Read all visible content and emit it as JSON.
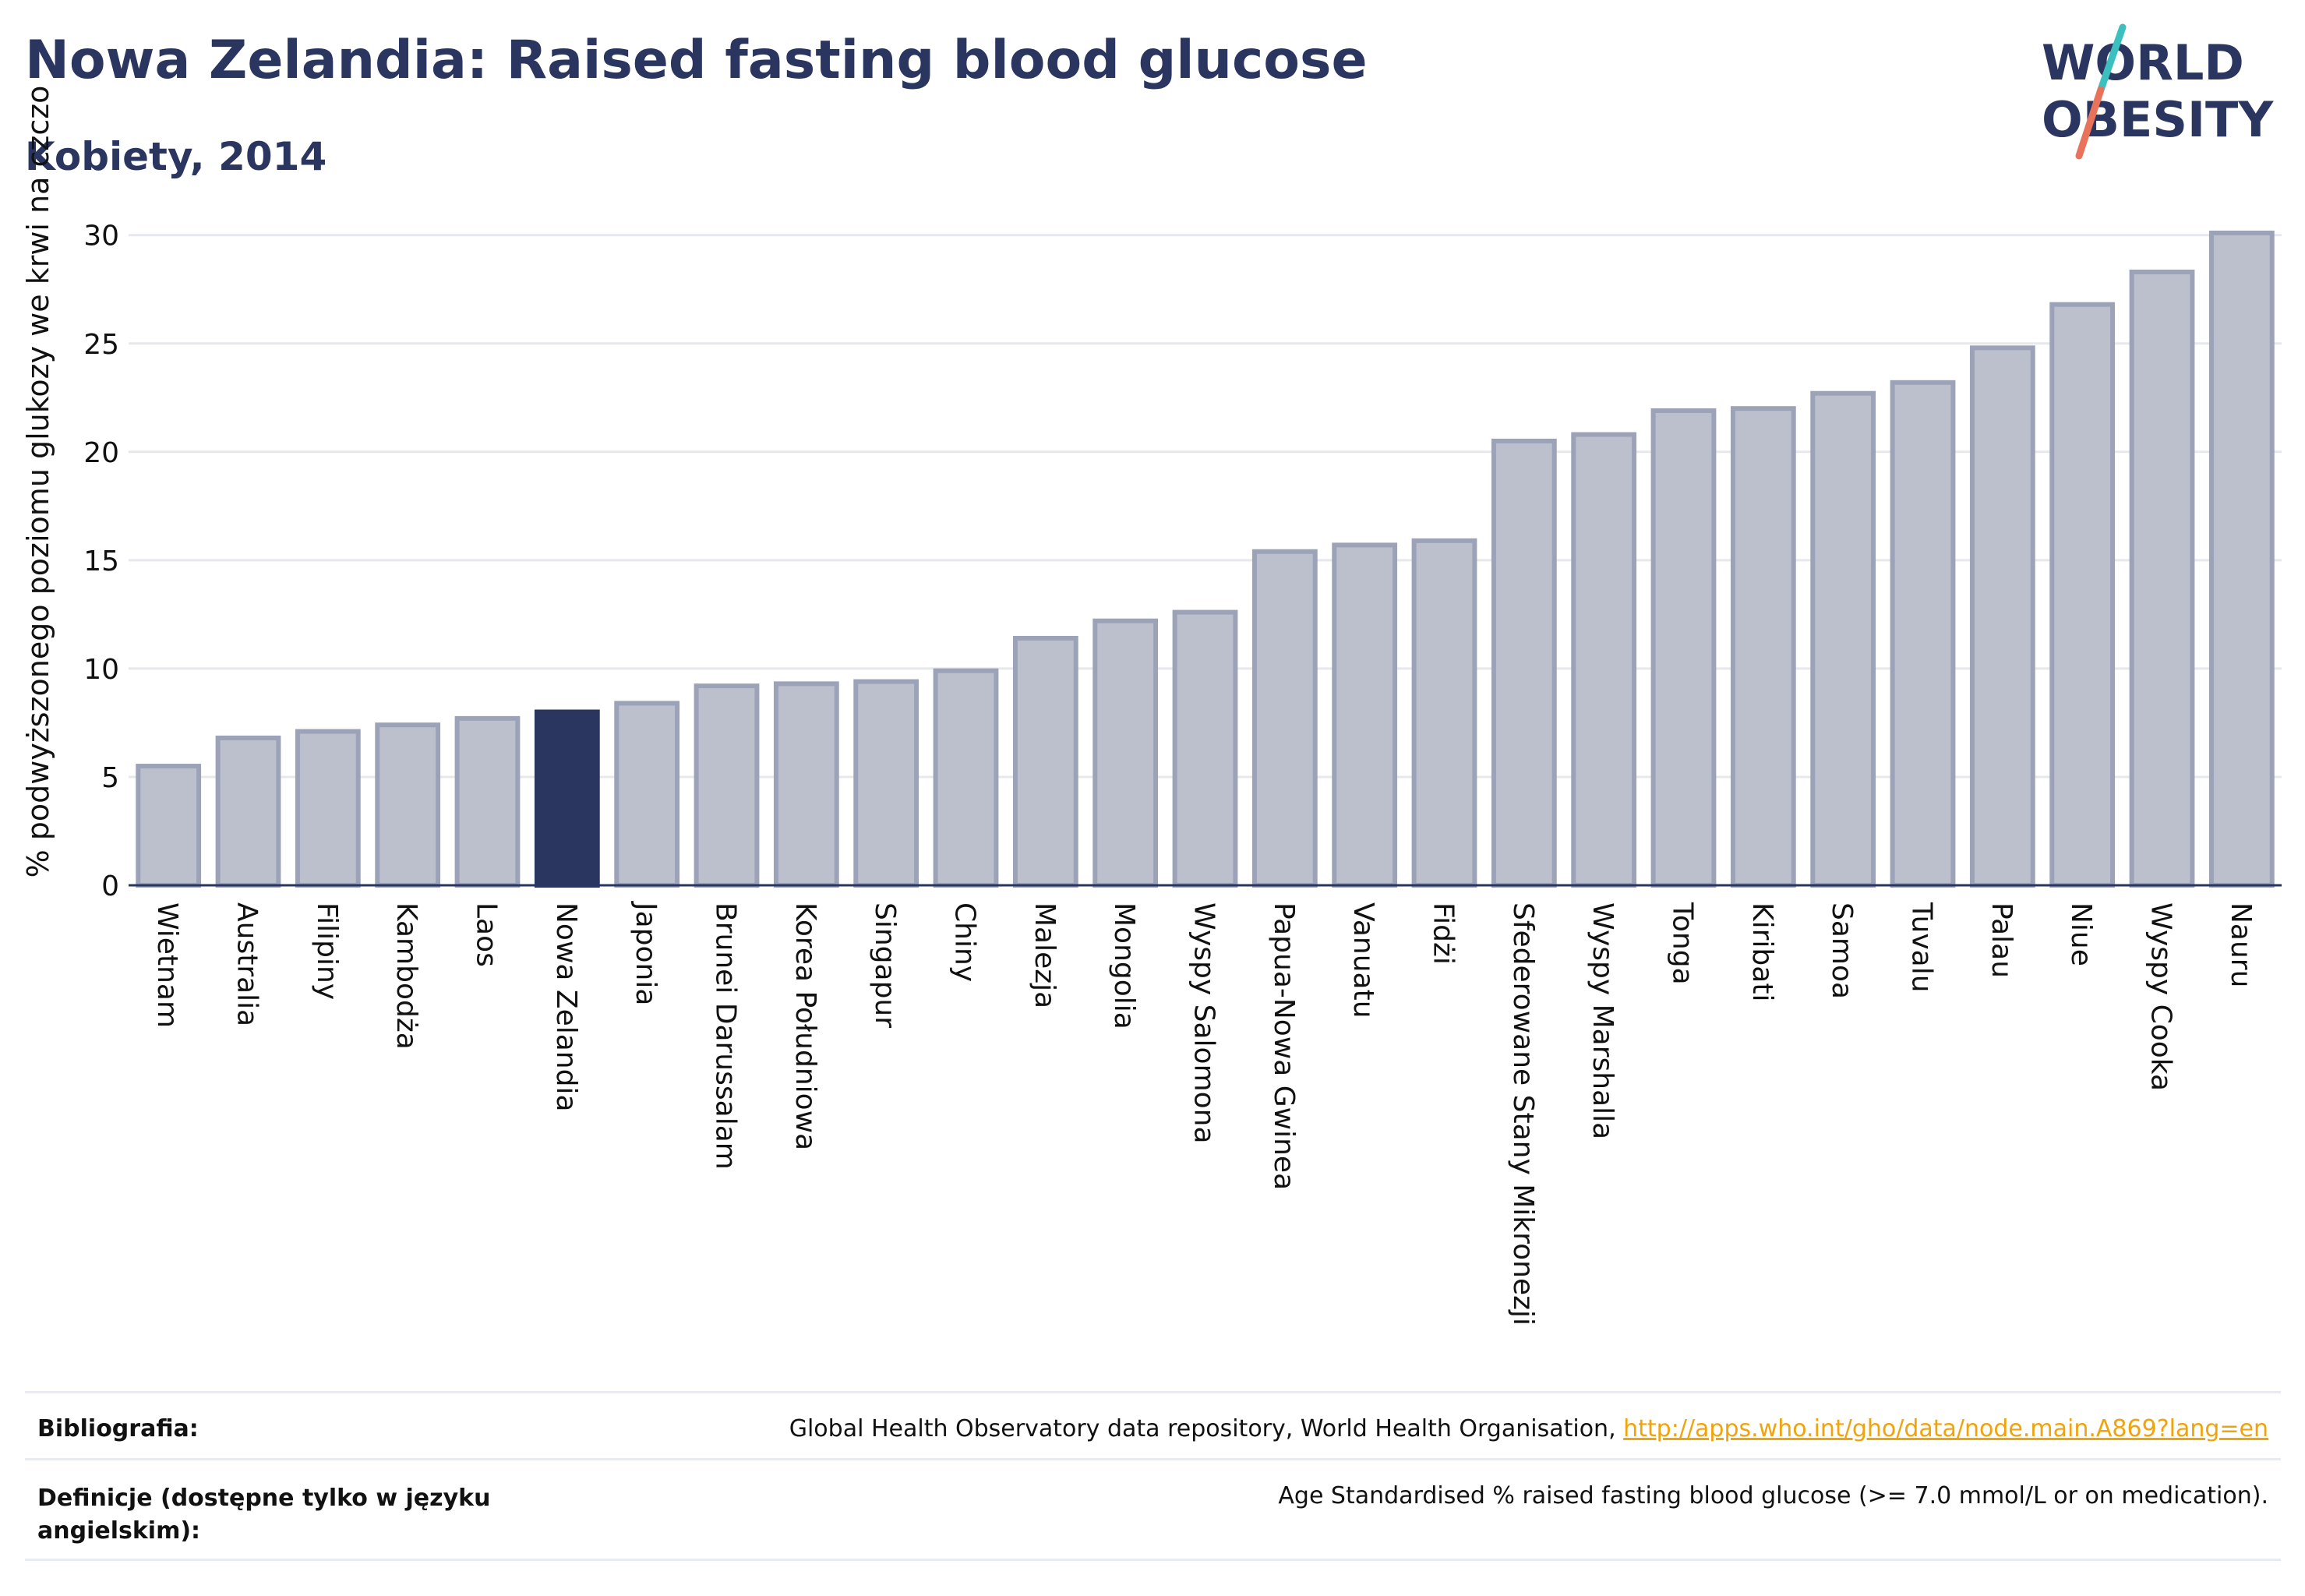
{
  "header": {
    "title": "Nowa Zelandia: Raised fasting blood glucose",
    "subtitle": "Kobiety, 2014"
  },
  "logo": {
    "line1": "WORLD",
    "line2": "OBESITY",
    "colors": {
      "text": "#2a3560",
      "slash_teal": "#3bbfbf",
      "slash_coral": "#e8735a"
    }
  },
  "colors": {
    "bar_fill": "#bcc0cd",
    "bar_stroke": "#9ca2b8",
    "highlight_fill": "#2a3560",
    "axis": "#2a3560",
    "grid": "#e6e8ee"
  },
  "chart_data": {
    "type": "bar",
    "ylabel": "% podwyższonego poziomu glukozy we krwi na czczo",
    "ylim": [
      0,
      31.5
    ],
    "yticks": [
      0,
      5,
      10,
      15,
      20,
      25,
      30
    ],
    "grid": true,
    "highlight": "Nowa Zelandia",
    "categories": [
      "Wietnam",
      "Australia",
      "Filipiny",
      "Kambodża",
      "Laos",
      "Nowa Zelandia",
      "Japonia",
      "Brunei Darussalam",
      "Korea Południowa",
      "Singapur",
      "Chiny",
      "Malezja",
      "Mongolia",
      "Wyspy Salomona",
      "Papua-Nowa Gwinea",
      "Vanuatu",
      "Fidżi",
      "Sfederowane Stany Mikronezji",
      "Wyspy Marshalla",
      "Tonga",
      "Kiribati",
      "Samoa",
      "Tuvalu",
      "Palau",
      "Niue",
      "Wyspy Cooka",
      "Nauru"
    ],
    "values": [
      5.5,
      6.8,
      7.1,
      7.4,
      7.7,
      8.0,
      8.4,
      9.2,
      9.3,
      9.4,
      9.9,
      11.4,
      12.2,
      12.6,
      15.4,
      15.7,
      15.9,
      20.5,
      20.8,
      21.9,
      22.0,
      22.7,
      23.2,
      24.8,
      26.8,
      28.3,
      30.1
    ]
  },
  "footer": {
    "bibliography_label": "Bibliografia:",
    "bibliography_text": "Global Health Observatory data repository, World Health Organisation, ",
    "bibliography_link": "http://apps.who.int/gho/data/node.main.A869?lang=en",
    "definitions_label_1": "Definicje (dostępne tylko w języku",
    "definitions_label_2": "angielskim):",
    "definitions_text": "Age Standardised % raised fasting blood glucose (>= 7.0 mmol/L or on medication)."
  }
}
